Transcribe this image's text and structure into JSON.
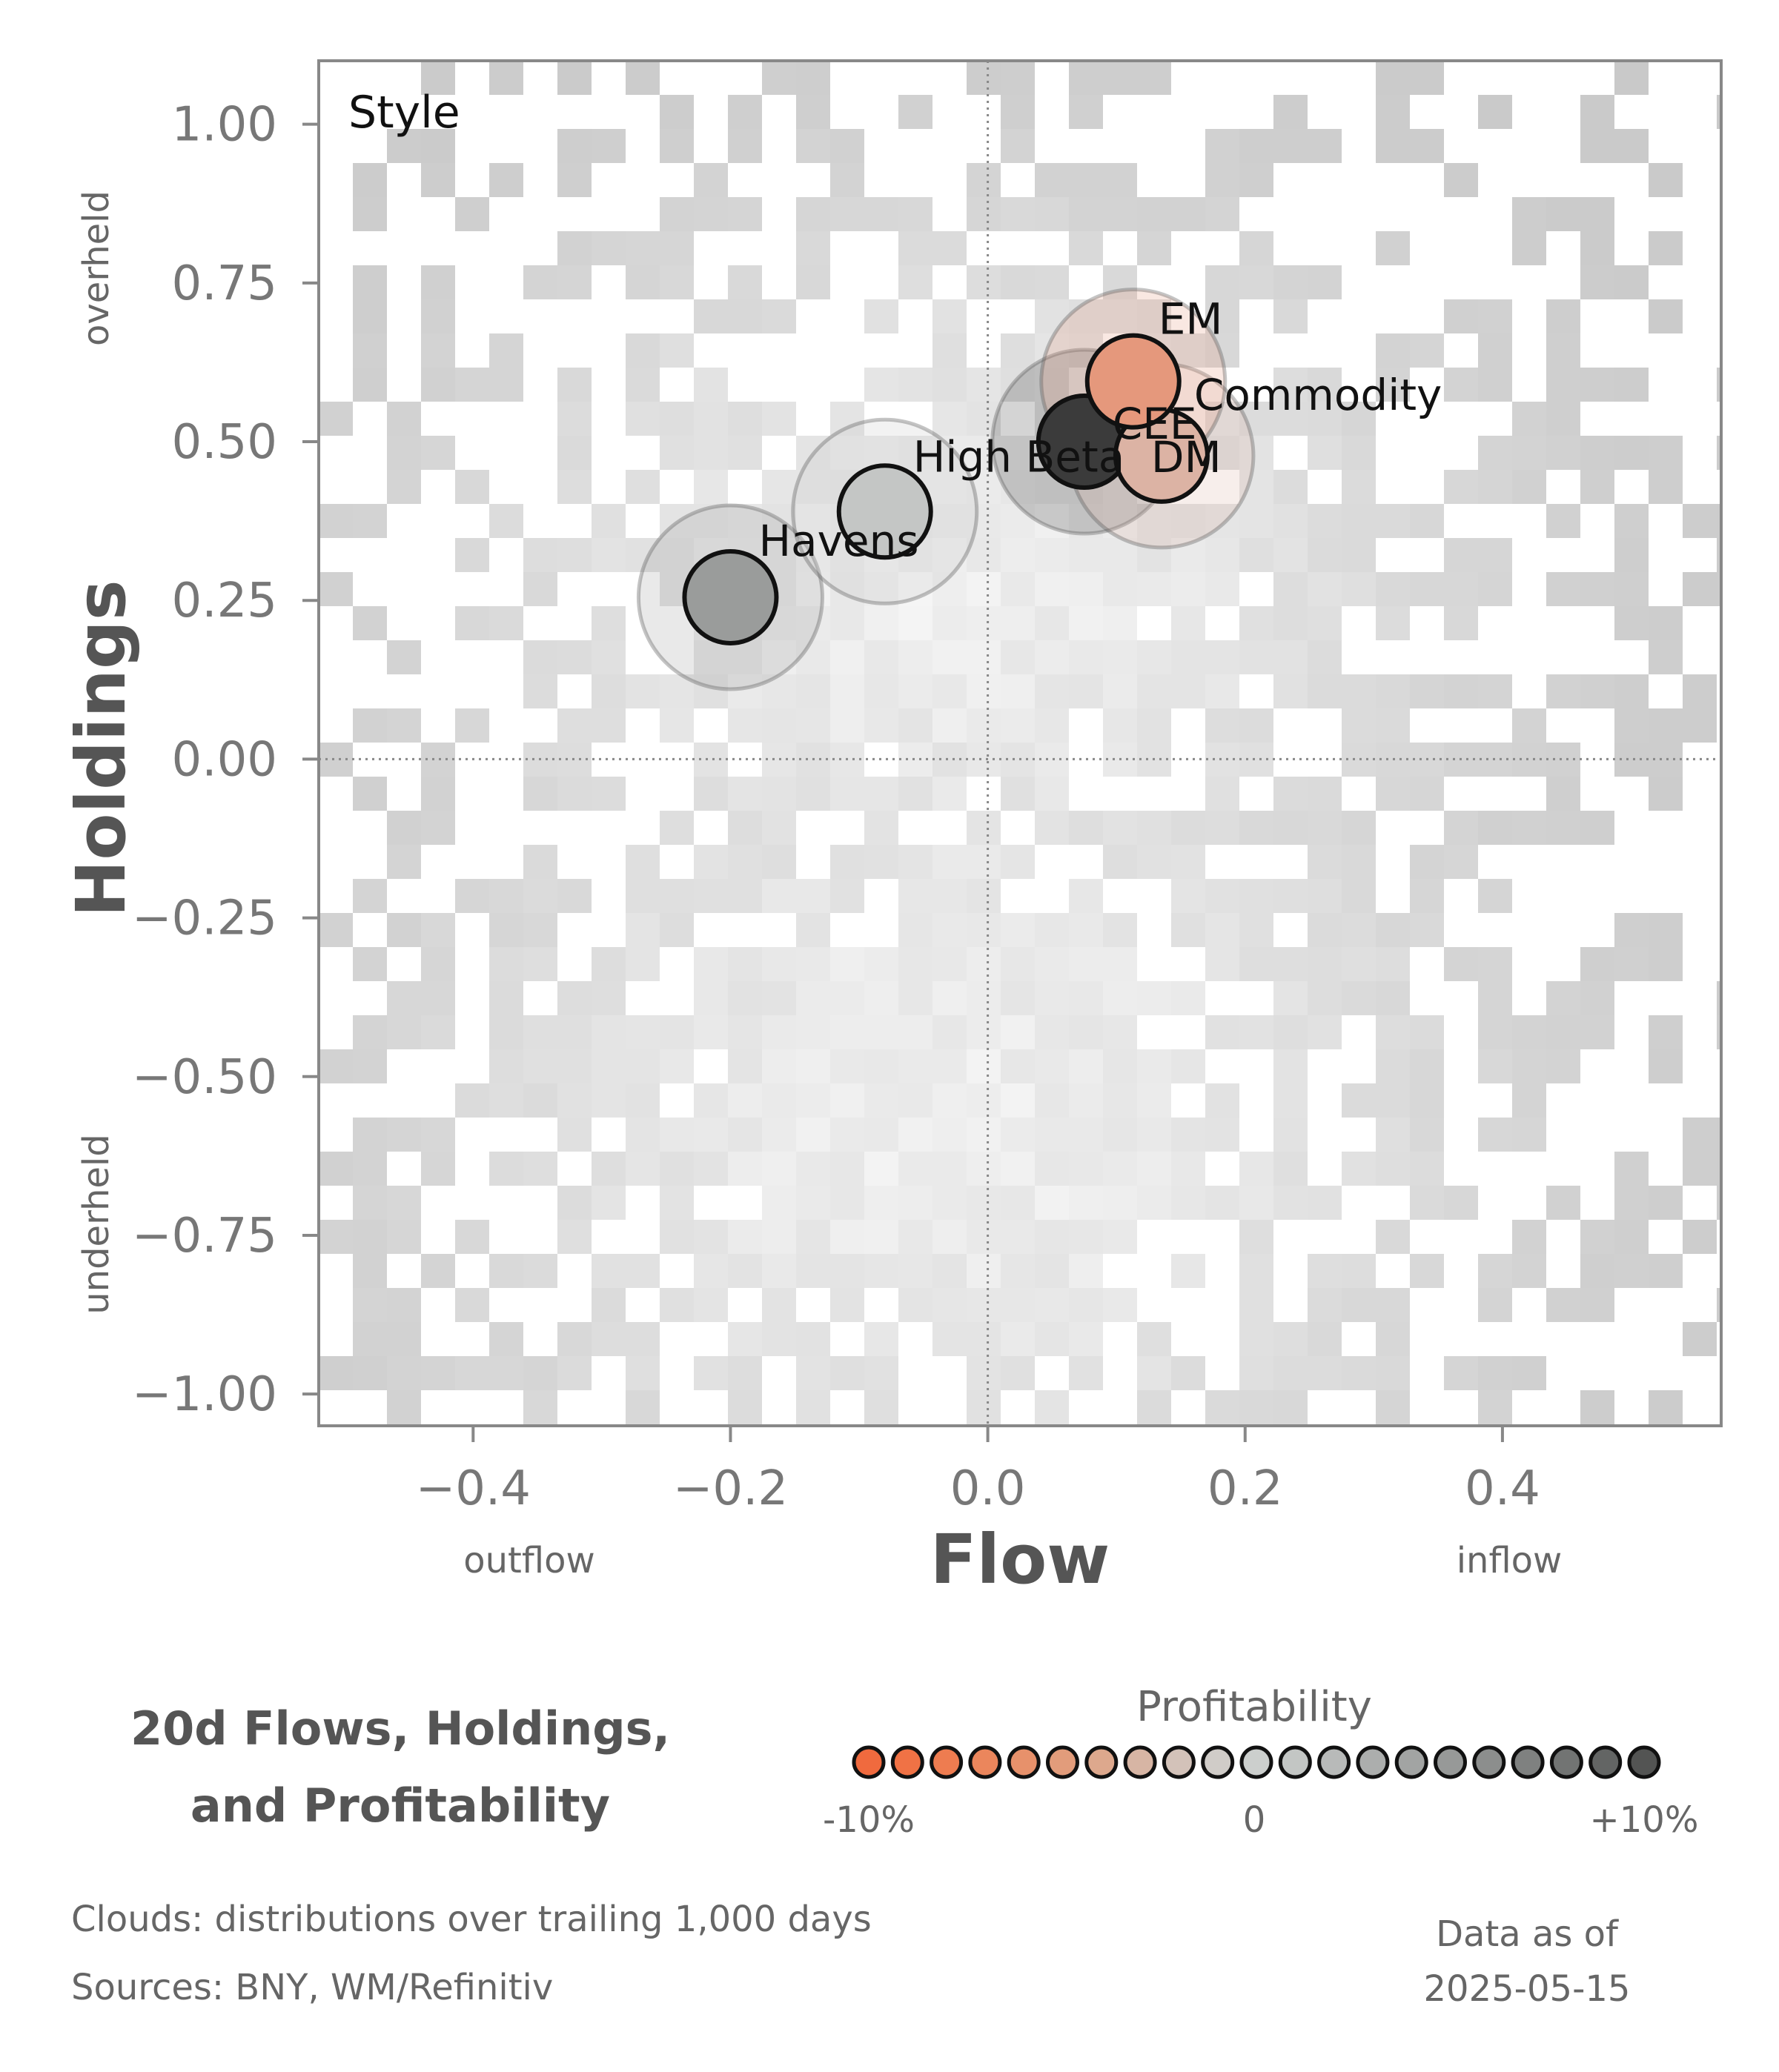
{
  "chart_data": {
    "type": "scatter",
    "panel_label": "Style",
    "xlabel": "Flow",
    "ylabel": "Holdings",
    "xlim": [
      -0.52,
      0.57
    ],
    "ylim": [
      -1.05,
      1.1
    ],
    "x_ticks": [
      -0.4,
      -0.2,
      0.0,
      0.2,
      0.4
    ],
    "x_tick_labels": [
      "−0.4",
      "−0.2",
      "0.0",
      "0.2",
      "0.4"
    ],
    "y_ticks": [
      1.0,
      0.75,
      0.5,
      0.25,
      0.0,
      -0.25,
      -0.5,
      -0.75,
      -1.0
    ],
    "y_tick_labels": [
      "1.00",
      "0.75",
      "0.50",
      "0.25",
      "0.00",
      "−0.25",
      "−0.50",
      "−0.75",
      "−1.00"
    ],
    "x_notes": {
      "left": "outflow",
      "right": "inflow"
    },
    "y_notes": {
      "top": "overheld",
      "bottom": "underheld"
    },
    "reference_lines": {
      "x": 0,
      "y": 0
    },
    "background": "heatmap cloud of trailing-history distributions (grey)",
    "points": [
      {
        "label": "Havens",
        "x": -0.2,
        "y": 0.255,
        "profitability": 4,
        "color": "#9a9c9b"
      },
      {
        "label": "High Beta",
        "x": -0.08,
        "y": 0.39,
        "profitability": 1,
        "color": "#c4c6c5"
      },
      {
        "label": "CEE",
        "x": 0.075,
        "y": 0.5,
        "profitability": 10,
        "color": "#3b3b3b"
      },
      {
        "label": "EM",
        "x": 0.113,
        "y": 0.595,
        "profitability": -5,
        "color": "#e5987c"
      },
      {
        "label": "Commodity",
        "x": 0.135,
        "y": 0.478,
        "profitability": -3,
        "color": "#dcb3a4"
      },
      {
        "label": "DM",
        "x": 0.135,
        "y": 0.478,
        "profitability": -3,
        "color": "#dcb3a4"
      }
    ],
    "legend": {
      "title": "Profitability",
      "tick_labels": [
        "-10%",
        "0",
        "+10%"
      ],
      "colors": [
        "#f06a3e",
        "#f07245",
        "#ee7c50",
        "#eb865c",
        "#e7916b",
        "#e29c7b",
        "#dda88d",
        "#d7b5a4",
        "#d3c2b9",
        "#d0ccc8",
        "#cccfcd",
        "#c3c6c4",
        "#b8bab9",
        "#acaead",
        "#a2a4a3",
        "#979998",
        "#8c8e8d",
        "#7f8180",
        "#727473",
        "#636564",
        "#535453"
      ]
    }
  },
  "footer": {
    "title_line1": "20d Flows, Holdings,",
    "title_line2": "and Profitability",
    "clouds_note": "Clouds:  distributions over trailing 1,000 days",
    "sources_note": "Sources:  BNY, WM/Refinitiv",
    "asof_label": "Data as of",
    "asof_date": "2025-05-15"
  }
}
